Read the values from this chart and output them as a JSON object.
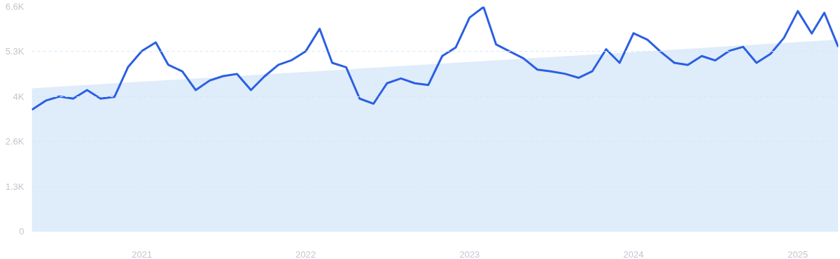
{
  "chart_data": {
    "type": "line",
    "x": [
      "2020-05",
      "2020-06",
      "2020-07",
      "2020-08",
      "2020-09",
      "2020-10",
      "2020-11",
      "2020-12",
      "2021-01",
      "2021-02",
      "2021-03",
      "2021-04",
      "2021-05",
      "2021-06",
      "2021-07",
      "2021-08",
      "2021-09",
      "2021-10",
      "2021-11",
      "2021-12",
      "2022-01",
      "2022-02",
      "2022-03",
      "2022-04",
      "2022-05",
      "2022-06",
      "2022-07",
      "2022-08",
      "2022-09",
      "2022-10",
      "2022-11",
      "2022-12",
      "2023-01",
      "2023-02",
      "2023-03",
      "2023-04",
      "2023-05",
      "2023-06",
      "2023-07",
      "2023-08",
      "2023-09",
      "2023-10",
      "2023-11",
      "2023-12",
      "2024-01",
      "2024-02",
      "2024-03",
      "2024-04",
      "2024-05",
      "2024-06",
      "2024-07",
      "2024-08",
      "2024-09",
      "2024-10",
      "2024-11",
      "2024-12",
      "2025-01",
      "2025-02",
      "2025-03",
      "2025-04"
    ],
    "series": [
      {
        "type": "area",
        "color": "#dceafa",
        "x": [
          "2020-05",
          "2025-04"
        ],
        "values": [
          4200,
          5630
        ]
      },
      {
        "color": "#2b5fe3",
        "values": [
          3570,
          3840,
          3960,
          3900,
          4150,
          3900,
          3950,
          4820,
          5300,
          5550,
          4890,
          4700,
          4150,
          4430,
          4560,
          4620,
          4150,
          4550,
          4890,
          5030,
          5290,
          5950,
          4950,
          4820,
          3900,
          3750,
          4350,
          4490,
          4350,
          4300,
          5150,
          5400,
          6280,
          6590,
          5490,
          5280,
          5080,
          4750,
          4700,
          4630,
          4510,
          4700,
          5350,
          4950,
          5820,
          5630,
          5280,
          4950,
          4890,
          5150,
          5020,
          5300,
          5420,
          4950,
          5210,
          5680,
          6470,
          5810,
          6420,
          5420
        ]
      }
    ],
    "xlim": [
      "2020-05",
      "2025-04"
    ],
    "xticks": [
      "2021",
      "2022",
      "2023",
      "2024",
      "2025"
    ],
    "ylim": [
      0,
      6600
    ],
    "yticks": [
      0,
      {
        "value": 1320,
        "label": "1.3K"
      },
      {
        "value": 2640,
        "label": "2.6K"
      },
      {
        "value": 3960,
        "label": "4K"
      },
      {
        "value": 5280,
        "label": "5.3K"
      },
      {
        "value": 6600,
        "label": "6.6K"
      }
    ],
    "grid": "y",
    "line_style": "solid",
    "marker": "none"
  }
}
